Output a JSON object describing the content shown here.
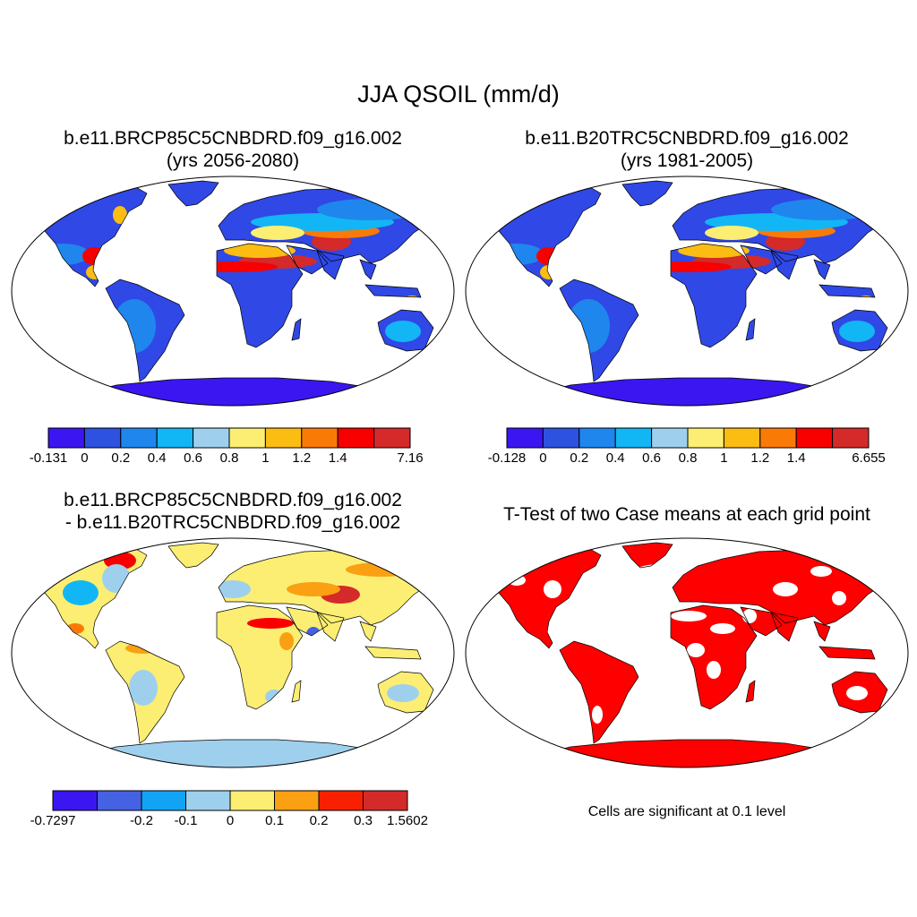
{
  "title": "JJA QSOIL (mm/d)",
  "panels": [
    {
      "title_line1": "b.e11.BRCP85C5CNBDRD.f09_g16.002",
      "title_line2": "(yrs 2056-2080)",
      "colorbar": {
        "colors": [
          "#3b16f0",
          "#2e52e0",
          "#1f86ee",
          "#12b6f5",
          "#9ed0ee",
          "#fbee73",
          "#fbbd12",
          "#fa7a08",
          "#f80000",
          "#d42a2a"
        ],
        "labels": [
          "-0.131",
          "0",
          "0.2",
          "0.4",
          "0.6",
          "0.8",
          "1",
          "1.2",
          "1.4",
          "",
          "7.16"
        ]
      }
    },
    {
      "title_line1": "b.e11.B20TRC5CNBDRD.f09_g16.002",
      "title_line2": "(yrs 1981-2005)",
      "colorbar": {
        "colors": [
          "#3b16f0",
          "#2e52e0",
          "#1f86ee",
          "#12b6f5",
          "#9ed0ee",
          "#fbee73",
          "#fbbd12",
          "#fa7a08",
          "#f80000",
          "#d42a2a"
        ],
        "labels": [
          "-0.128",
          "0",
          "0.2",
          "0.4",
          "0.6",
          "0.8",
          "1",
          "1.2",
          "1.4",
          "",
          "6.655"
        ]
      }
    },
    {
      "title_line1": "b.e11.BRCP85C5CNBDRD.f09_g16.002",
      "title_line2": "- b.e11.B20TRC5CNBDRD.f09_g16.002",
      "colorbar": {
        "colors": [
          "#3b16f0",
          "#4462e2",
          "#12a4f4",
          "#9ed0ee",
          "#fbee73",
          "#fba012",
          "#f82000",
          "#d42a2a"
        ],
        "labels": [
          "-0.7297",
          "",
          "-0.2",
          "-0.1",
          "0",
          "0.1",
          "0.2",
          "0.3",
          "1.5602"
        ]
      }
    },
    {
      "title_line1": "T-Test of two Case means at each grid point",
      "note": "Cells are significant at 0.1 level",
      "significant_color": "#ff0000"
    }
  ],
  "map_colors": {
    "ocean": "#ffffff",
    "outline": "#000000",
    "antarctica_p1": "#3b16f0",
    "antarctica_p3": "#9ed0ee"
  }
}
